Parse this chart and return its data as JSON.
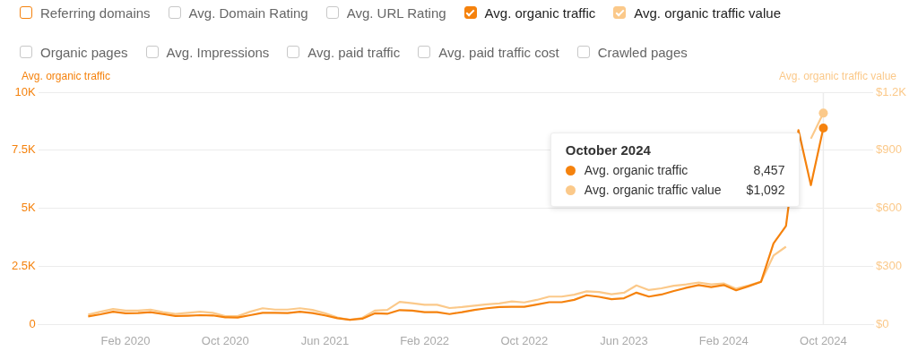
{
  "chart_data": {
    "type": "line",
    "ylabel": "Avg. organic traffic",
    "y2label": "Avg. organic traffic value",
    "x": [
      "2019-11",
      "2019-12",
      "2020-01",
      "2020-02",
      "2020-03",
      "2020-04",
      "2020-05",
      "2020-06",
      "2020-07",
      "2020-08",
      "2020-09",
      "2020-10",
      "2020-11",
      "2020-12",
      "2021-01",
      "2021-02",
      "2021-03",
      "2021-04",
      "2021-05",
      "2021-06",
      "2021-07",
      "2021-08",
      "2021-09",
      "2021-10",
      "2021-11",
      "2021-12",
      "2022-01",
      "2022-02",
      "2022-03",
      "2022-04",
      "2022-05",
      "2022-06",
      "2022-07",
      "2022-08",
      "2022-09",
      "2022-10",
      "2022-11",
      "2022-12",
      "2023-01",
      "2023-02",
      "2023-03",
      "2023-04",
      "2023-05",
      "2023-06",
      "2023-07",
      "2023-08",
      "2023-09",
      "2023-10",
      "2023-11",
      "2023-12",
      "2024-01",
      "2024-02",
      "2024-03",
      "2024-04",
      "2024-05",
      "2024-06",
      "2024-07",
      "2024-08",
      "2024-09",
      "2024-10"
    ],
    "series": [
      {
        "name": "Avg. organic traffic",
        "color": "#f5820d",
        "values": [
          350,
          440,
          550,
          480,
          490,
          530,
          450,
          370,
          380,
          400,
          390,
          310,
          300,
          400,
          500,
          500,
          490,
          550,
          490,
          390,
          270,
          200,
          250,
          480,
          460,
          620,
          600,
          530,
          530,
          450,
          530,
          630,
          700,
          750,
          760,
          760,
          860,
          960,
          960,
          1060,
          1260,
          1190,
          1090,
          1130,
          1370,
          1200,
          1290,
          1440,
          1580,
          1700,
          1610,
          1700,
          1470,
          1650,
          1840,
          3490,
          4240,
          8370,
          6000,
          8457
        ]
      },
      {
        "name": "Avg. organic traffic value",
        "color": "#fbc98a",
        "axis": "y2",
        "values": [
          51,
          66,
          80,
          72,
          72,
          77,
          64,
          55,
          60,
          66,
          60,
          43,
          43,
          66,
          84,
          77,
          77,
          84,
          75,
          58,
          36,
          24,
          34,
          72,
          75,
          117,
          110,
          102,
          102,
          85,
          90,
          97,
          104,
          109,
          119,
          114,
          127,
          144,
          144,
          154,
          171,
          168,
          156,
          164,
          202,
          178,
          187,
          200,
          207,
          217,
          207,
          212,
          185,
          202,
          221,
          356,
          402,
          null,
          960,
          1092
        ]
      }
    ],
    "xlim": [
      "2019-07",
      "2025-02"
    ],
    "xticks": [
      {
        "value": "2020-02",
        "label": "Feb 2020"
      },
      {
        "value": "2020-10",
        "label": "Oct 2020"
      },
      {
        "value": "2021-06",
        "label": "Jun 2021"
      },
      {
        "value": "2022-02",
        "label": "Feb 2022"
      },
      {
        "value": "2022-10",
        "label": "Oct 2022"
      },
      {
        "value": "2023-06",
        "label": "Jun 2023"
      },
      {
        "value": "2024-02",
        "label": "Feb 2024"
      },
      {
        "value": "2024-10",
        "label": "Oct 2024"
      }
    ],
    "ylim": [
      0,
      10000
    ],
    "yticks": [
      0,
      {
        "value": 2500,
        "label": "2.5K"
      },
      {
        "value": 5000,
        "label": "5K"
      },
      {
        "value": 7500,
        "label": "7.5K"
      },
      {
        "value": 10000,
        "label": "10K"
      }
    ],
    "y2lim": [
      0,
      1200
    ],
    "y2ticks": [
      {
        "value": 0,
        "label": "$0"
      },
      {
        "value": 300,
        "label": "$300"
      },
      {
        "value": 600,
        "label": "$600"
      },
      {
        "value": 900,
        "label": "$900"
      },
      {
        "value": 1200,
        "label": "$1.2K"
      }
    ],
    "ref_lines": [
      {
        "axis": "x",
        "value": "2024-10",
        "color": "#ececec"
      }
    ],
    "annotations": [
      "Referring domains",
      "Avg. Domain Rating",
      "Avg. URL Rating",
      "Organic pages",
      "Avg. Impressions",
      "Avg. paid traffic",
      "Avg. paid traffic cost",
      "Crawled pages",
      "October 2024",
      "8,457",
      "$1,092"
    ],
    "grid": "y",
    "legend": "top",
    "marker": "none",
    "line_style": "solid"
  }
}
